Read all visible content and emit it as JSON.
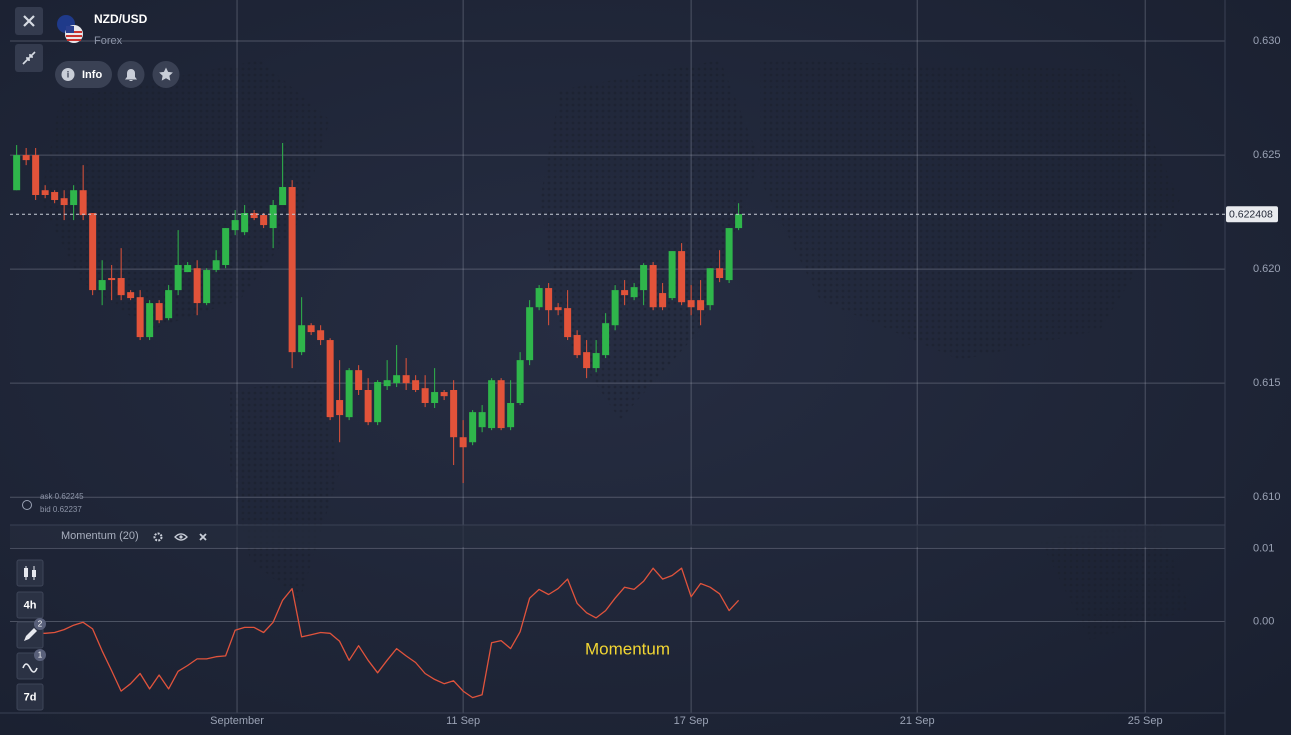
{
  "header": {
    "symbol": "NZD/USD",
    "market": "Forex",
    "info_button": "Info"
  },
  "toolbar": {
    "timeframe": "4h",
    "period": "7d",
    "drawings_badge": "2",
    "indicators_badge": "1"
  },
  "quote": {
    "ask": "ask 0.62245",
    "bid": "bid 0.62237"
  },
  "chart_data": [
    {
      "type": "candlestick",
      "open": [
        0.62346,
        0.625,
        0.625,
        0.62346,
        0.62338,
        0.62311,
        0.62281,
        0.62346,
        0.62246,
        0.61908,
        0.61961,
        0.61961,
        0.61899,
        0.61877,
        0.61702,
        0.61851,
        0.61785,
        0.61908,
        0.61987,
        0.62004,
        0.61851,
        0.61996,
        0.62018,
        0.62171,
        0.62162,
        0.62246,
        0.62237,
        0.6218,
        0.62281,
        0.6236,
        0.61636,
        0.61754,
        0.61732,
        0.61689,
        0.61426,
        0.61351,
        0.61557,
        0.6147,
        0.61329,
        0.61487,
        0.615,
        0.61535,
        0.61513,
        0.61478,
        0.61413,
        0.61461,
        0.6147,
        0.61263,
        0.61241,
        0.61307,
        0.61303,
        0.61513,
        0.61307,
        0.61413,
        0.61601,
        0.61833,
        0.61917,
        0.61833,
        0.61829,
        0.61711,
        0.61636,
        0.61566,
        0.61623,
        0.61754,
        0.61908,
        0.61877,
        0.61908,
        0.62018,
        0.61895,
        0.61873,
        0.62079,
        0.61864,
        0.61864,
        0.61842,
        0.62004,
        0.61952,
        0.6218
      ],
      "high": [
        0.62544,
        0.62531,
        0.62531,
        0.62368,
        0.62346,
        0.62346,
        0.62368,
        0.62456,
        0.62246,
        0.62039,
        0.62018,
        0.62092,
        0.61908,
        0.61908,
        0.61864,
        0.61864,
        0.6193,
        0.62171,
        0.62031,
        0.62039,
        0.62004,
        0.62083,
        0.6218,
        0.62259,
        0.62281,
        0.62259,
        0.62246,
        0.62303,
        0.62553,
        0.6239,
        0.61877,
        0.61763,
        0.61754,
        0.61697,
        0.61601,
        0.61566,
        0.61579,
        0.61522,
        0.61513,
        0.61601,
        0.61667,
        0.6161,
        0.61535,
        0.61535,
        0.61566,
        0.6147,
        0.61513,
        0.61338,
        0.61382,
        0.61404,
        0.61522,
        0.61522,
        0.61513,
        0.61636,
        0.61864,
        0.6193,
        0.61939,
        0.61851,
        0.61908,
        0.61732,
        0.61689,
        0.61689,
        0.61807,
        0.6193,
        0.61952,
        0.61939,
        0.62026,
        0.62031,
        0.61939,
        0.62079,
        0.62114,
        0.6193,
        0.61952,
        0.62004,
        0.62083,
        0.6218,
        0.62289
      ],
      "low": [
        0.62346,
        0.62456,
        0.62303,
        0.62311,
        0.62289,
        0.62215,
        0.62215,
        0.62215,
        0.61886,
        0.61842,
        0.61864,
        0.61864,
        0.61864,
        0.61689,
        0.61689,
        0.61763,
        0.61776,
        0.61886,
        0.61987,
        0.61798,
        0.61842,
        0.61987,
        0.62004,
        0.62149,
        0.62149,
        0.62215,
        0.6218,
        0.62092,
        0.62281,
        0.61566,
        0.61623,
        0.61711,
        0.61667,
        0.61338,
        0.61241,
        0.61338,
        0.61448,
        0.61316,
        0.61316,
        0.6147,
        0.61483,
        0.6147,
        0.61461,
        0.61395,
        0.61391,
        0.61426,
        0.61141,
        0.61062,
        0.61228,
        0.61285,
        0.61294,
        0.61294,
        0.61294,
        0.61404,
        0.61579,
        0.6182,
        0.61754,
        0.61798,
        0.61689,
        0.6161,
        0.61522,
        0.61548,
        0.6161,
        0.61732,
        0.61842,
        0.61864,
        0.61842,
        0.6182,
        0.6182,
        0.61864,
        0.61842,
        0.61798,
        0.61754,
        0.6182,
        0.61943,
        0.61939,
        0.62171
      ],
      "close": [
        0.625,
        0.62478,
        0.62325,
        0.62325,
        0.62303,
        0.62281,
        0.62346,
        0.62237,
        0.61908,
        0.61952,
        0.61952,
        0.61886,
        0.61873,
        0.61702,
        0.61851,
        0.61776,
        0.61908,
        0.62018,
        0.62018,
        0.61851,
        0.61996,
        0.62039,
        0.6218,
        0.62215,
        0.62246,
        0.62224,
        0.62193,
        0.62281,
        0.6236,
        0.61636,
        0.61754,
        0.61724,
        0.61689,
        0.61351,
        0.6136,
        0.61557,
        0.6147,
        0.61329,
        0.61505,
        0.61513,
        0.61535,
        0.615,
        0.6147,
        0.61413,
        0.61461,
        0.61443,
        0.61263,
        0.61219,
        0.61373,
        0.61373,
        0.61513,
        0.61303,
        0.61413,
        0.61601,
        0.61833,
        0.61917,
        0.6182,
        0.6182,
        0.61702,
        0.61623,
        0.61566,
        0.61632,
        0.61763,
        0.61908,
        0.61886,
        0.61921,
        0.62018,
        0.61833,
        0.61833,
        0.62079,
        0.61855,
        0.61833,
        0.6182,
        0.62004,
        0.61961,
        0.6218,
        0.62241
      ],
      "up_color": "#2fb64b",
      "down_color": "#e2533a",
      "current_price": 0.622408,
      "ylim": [
        0.609,
        0.6318
      ],
      "yticks": [
        {
          "value": 0.63,
          "label": "0.630"
        },
        {
          "value": 0.625,
          "label": "0.625"
        },
        {
          "value": 0.62,
          "label": "0.620"
        },
        {
          "value": 0.615,
          "label": "0.615"
        },
        {
          "value": 0.61,
          "label": "0.610"
        }
      ],
      "xlim": [
        -0.7,
        127.2
      ],
      "xticks": [
        {
          "value": 23.2,
          "label": "September"
        },
        {
          "value": 47,
          "label": "11 Sep"
        },
        {
          "value": 71,
          "label": "17 Sep"
        },
        {
          "value": 94.8,
          "label": "21 Sep"
        },
        {
          "value": 118.8,
          "label": "25 Sep"
        }
      ],
      "grid": true
    },
    {
      "type": "line",
      "title": "Momentum (20)",
      "annotation": "Momentum",
      "color": "#e0533c",
      "values": [
        -0.0015,
        -0.0015,
        -0.0016,
        -0.0016,
        -0.0015,
        -0.0011,
        -0.0005,
        -0.0001,
        -0.001,
        -0.004,
        -0.0067,
        -0.0095,
        -0.0085,
        -0.0071,
        -0.0092,
        -0.0073,
        -0.0092,
        -0.0068,
        -0.006,
        -0.0051,
        -0.0051,
        -0.0048,
        -0.0047,
        -0.0012,
        -0.0008,
        -0.0008,
        -0.0015,
        -0.0001,
        0.0029,
        0.0045,
        -0.0021,
        -0.0018,
        -0.0015,
        -0.0016,
        -0.0027,
        -0.0053,
        -0.0033,
        -0.0053,
        -0.007,
        -0.0053,
        -0.0037,
        -0.0047,
        -0.0056,
        -0.0071,
        -0.0079,
        -0.0085,
        -0.0081,
        -0.0095,
        -0.0104,
        -0.01,
        -0.0029,
        -0.0026,
        -0.0037,
        -0.0014,
        0.0032,
        0.0044,
        0.0037,
        0.0045,
        0.0058,
        0.0025,
        0.0012,
        0.0005,
        0.0015,
        0.0032,
        0.0047,
        0.0044,
        0.0055,
        0.0073,
        0.0058,
        0.0063,
        0.0073,
        0.0034,
        0.0052,
        0.0047,
        0.0038,
        0.0015,
        0.0029
      ],
      "ylim": [
        -0.0125,
        0.0132
      ],
      "yticks": [
        {
          "value": 0.01,
          "label": "0.01"
        },
        {
          "value": 0,
          "label": "0.00"
        }
      ],
      "xlim": [
        -0.7,
        127.2
      ],
      "grid": true
    }
  ]
}
